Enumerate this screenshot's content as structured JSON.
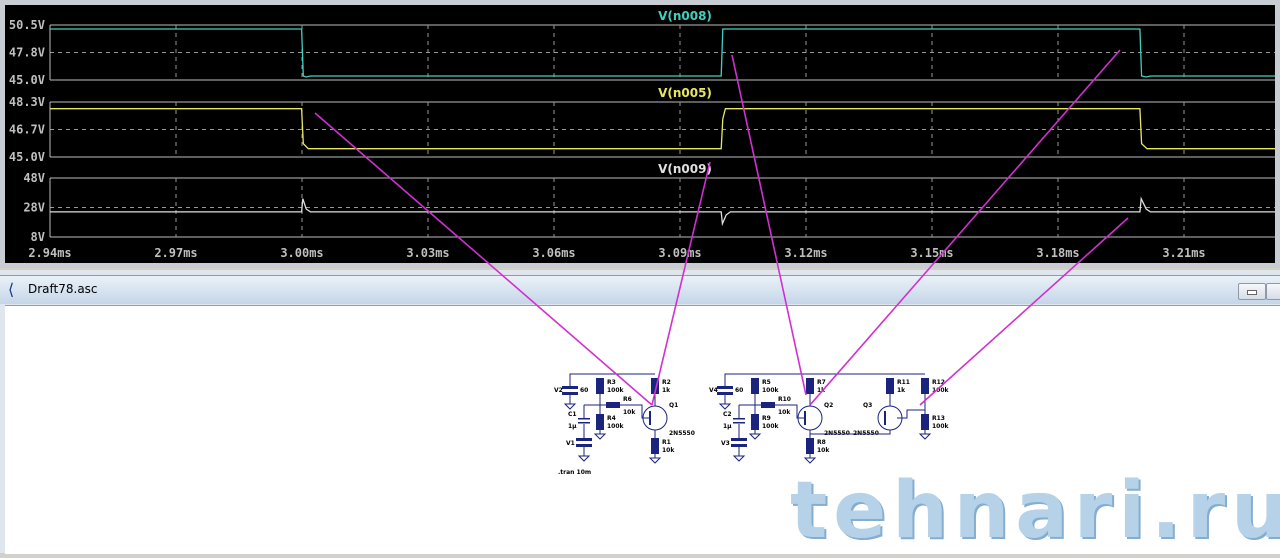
{
  "plot": {
    "background": "#000000",
    "panels": [
      {
        "trace": "V(n008)",
        "color": "#40d0c0",
        "ylim": [
          45.0,
          50.5
        ],
        "yticks": [
          "50.5V",
          "47.8V",
          "45.0V"
        ],
        "points": [
          [
            2.94,
            50.1
          ],
          [
            2.9999,
            50.1
          ],
          [
            3.0003,
            45.4
          ],
          [
            3.001,
            45.3
          ],
          [
            3.002,
            45.4
          ],
          [
            3.0998,
            45.4
          ],
          [
            3.1002,
            50.1
          ],
          [
            3.1995,
            50.1
          ],
          [
            3.1999,
            45.4
          ],
          [
            3.201,
            45.3
          ],
          [
            3.202,
            45.4
          ],
          [
            3.232,
            45.4
          ]
        ]
      },
      {
        "trace": "V(n005)",
        "color": "#e8e860",
        "ylim": [
          45.0,
          48.3
        ],
        "yticks": [
          "48.3V",
          "46.7V",
          "45.0V"
        ],
        "points": [
          [
            2.94,
            47.9
          ],
          [
            2.9999,
            47.9
          ],
          [
            3.0003,
            45.8
          ],
          [
            3.0015,
            45.5
          ],
          [
            3.0998,
            45.5
          ],
          [
            3.1002,
            47.3
          ],
          [
            3.1008,
            47.9
          ],
          [
            3.1995,
            47.9
          ],
          [
            3.1999,
            45.8
          ],
          [
            3.2012,
            45.5
          ],
          [
            3.232,
            45.5
          ]
        ]
      },
      {
        "trace": "V(n009)",
        "color": "#e0e0e0",
        "ylim": [
          8,
          48
        ],
        "yticks": [
          "48V",
          "28V",
          "8V"
        ],
        "points": [
          [
            2.94,
            25
          ],
          [
            2.9999,
            25
          ],
          [
            3.0002,
            34
          ],
          [
            3.001,
            27
          ],
          [
            3.002,
            25
          ],
          [
            3.0998,
            25
          ],
          [
            3.1001,
            17
          ],
          [
            3.101,
            23
          ],
          [
            3.102,
            25
          ],
          [
            3.1995,
            25
          ],
          [
            3.1998,
            34
          ],
          [
            3.201,
            27
          ],
          [
            3.202,
            25
          ],
          [
            3.232,
            25
          ]
        ]
      }
    ],
    "x_ticks": [
      "2.94ms",
      "2.97ms",
      "3.00ms",
      "3.03ms",
      "3.06ms",
      "3.09ms",
      "3.12ms",
      "3.15ms",
      "3.18ms",
      "3.21ms"
    ],
    "xlim": [
      2.94,
      3.232
    ],
    "grid": true
  },
  "schematic_window": {
    "title": "Draft78.asc",
    "icon": "ltspice-schematic-icon",
    "circuit1": {
      "V2": "V2",
      "V2v": "60",
      "R3": "R3",
      "R3v": "100k",
      "R6": "R6",
      "R6v": "10k",
      "R4": "R4",
      "R4v": "100k",
      "R2": "R2",
      "R2v": "1k",
      "Q1": "Q1",
      "Q1m": "2N5550",
      "C1": "C1",
      "C1v": "1µ",
      "V1": "V1",
      "R1": "R1",
      "R1v": "10k",
      "tran": ".tran 10m"
    },
    "circuit2": {
      "V4": "V4",
      "V4v": "60",
      "R5": "R5",
      "R5v": "100k",
      "R10": "R10",
      "R10v": "10k",
      "R9": "R9",
      "R9v": "100k",
      "R7": "R7",
      "R7v": "1k",
      "Q2": "Q2",
      "Q2m": "2N5550",
      "C2": "C2",
      "C2v": "1µ",
      "V3": "V3",
      "R8": "R8",
      "R8v": "10k",
      "R11": "R11",
      "R11v": "1k",
      "Q3": "Q3",
      "Q3m": "2N5550",
      "R12": "R12",
      "R12v": "100k",
      "R13": "R13",
      "R13v": "100k"
    }
  },
  "annotation_color": "#d030d0",
  "watermark": "tehnari.ru"
}
